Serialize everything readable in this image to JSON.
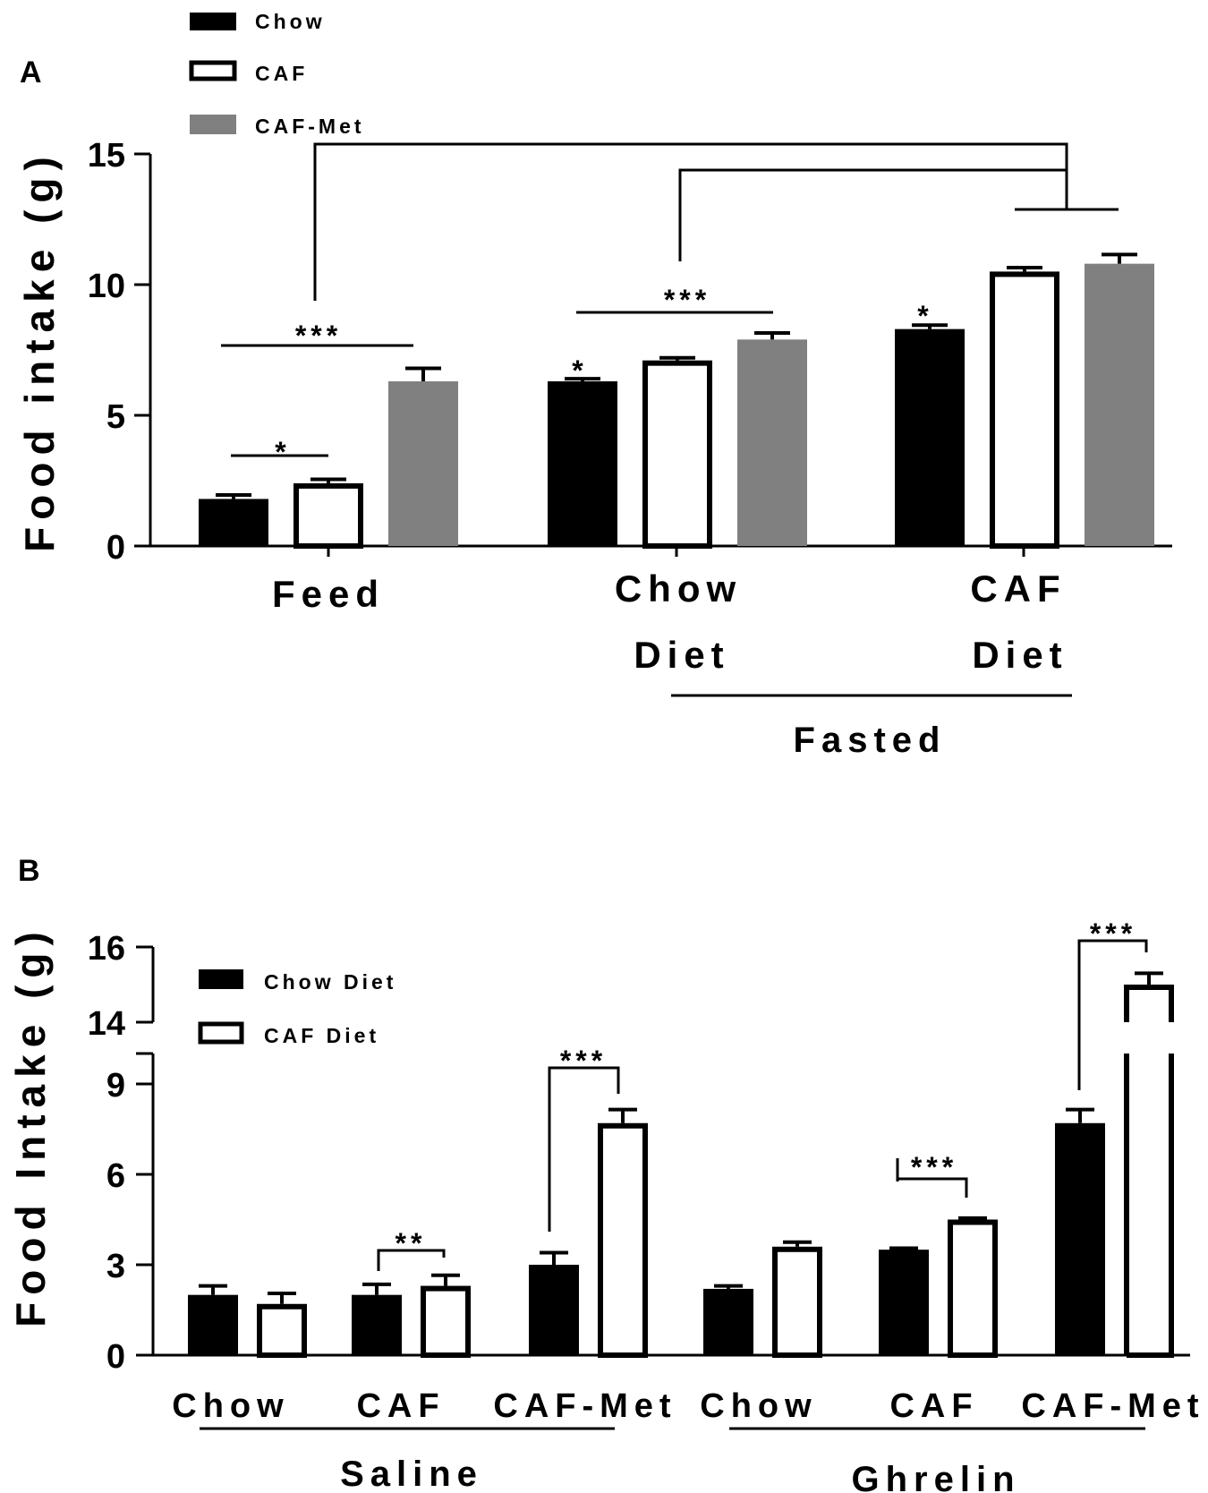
{
  "figure": {
    "panel_a_letter": "A",
    "panel_b_letter": "B"
  },
  "chart_data": [
    {
      "type": "bar",
      "panel": "A",
      "ylabel": "Food intake (g)",
      "ylim": [
        0,
        15
      ],
      "yticks": [
        "0",
        "5",
        "10",
        "15"
      ],
      "categories": [
        "Feed",
        "Chow Diet",
        "CAF Diet"
      ],
      "category_lines": [
        [
          "Feed"
        ],
        [
          "Chow",
          "Diet"
        ],
        [
          "CAF",
          "Diet"
        ]
      ],
      "group_label": "Fasted",
      "legend": [
        "Chow",
        "CAF",
        "CAF-Met"
      ],
      "series": [
        {
          "name": "Chow",
          "color": "#000000",
          "fill": "solid",
          "values": [
            1.8,
            6.3,
            8.3
          ],
          "errors": [
            0.15,
            0.1,
            0.15
          ]
        },
        {
          "name": "CAF",
          "color": "#ffffff",
          "fill": "open",
          "values": [
            2.4,
            7.1,
            10.5
          ],
          "errors": [
            0.15,
            0.1,
            0.15
          ]
        },
        {
          "name": "CAF-Met",
          "color": "#808080",
          "fill": "solid",
          "values": [
            6.3,
            7.9,
            10.8
          ],
          "errors": [
            0.5,
            0.25,
            0.35
          ]
        }
      ],
      "annotations": [
        "*",
        "***",
        "*",
        "***",
        "*"
      ]
    },
    {
      "type": "bar",
      "panel": "B",
      "ylabel": "Food Intake (g)",
      "ylim": [
        0,
        16
      ],
      "axis_break": [
        10,
        14
      ],
      "yticks": [
        "0",
        "3",
        "6",
        "9",
        "14",
        "16"
      ],
      "categories": [
        "Chow",
        "CAF",
        "CAF-Met",
        "Chow",
        "CAF",
        "CAF-Met"
      ],
      "groups": [
        "Saline",
        "Ghrelin"
      ],
      "legend": [
        "Chow Diet",
        "CAF Diet"
      ],
      "series": [
        {
          "name": "Chow Diet",
          "color": "#000000",
          "fill": "solid",
          "values": [
            2.0,
            2.0,
            3.0,
            2.2,
            3.5,
            7.7
          ],
          "errors": [
            0.3,
            0.35,
            0.4,
            0.1,
            0.05,
            0.45
          ]
        },
        {
          "name": "CAF Diet",
          "color": "#ffffff",
          "fill": "open",
          "values": [
            1.7,
            2.3,
            7.7,
            3.6,
            4.5,
            15.0
          ],
          "errors": [
            0.35,
            0.35,
            0.45,
            0.15,
            0.05,
            0.3
          ]
        }
      ],
      "annotations": [
        "**",
        "***",
        "***",
        "***"
      ]
    }
  ]
}
